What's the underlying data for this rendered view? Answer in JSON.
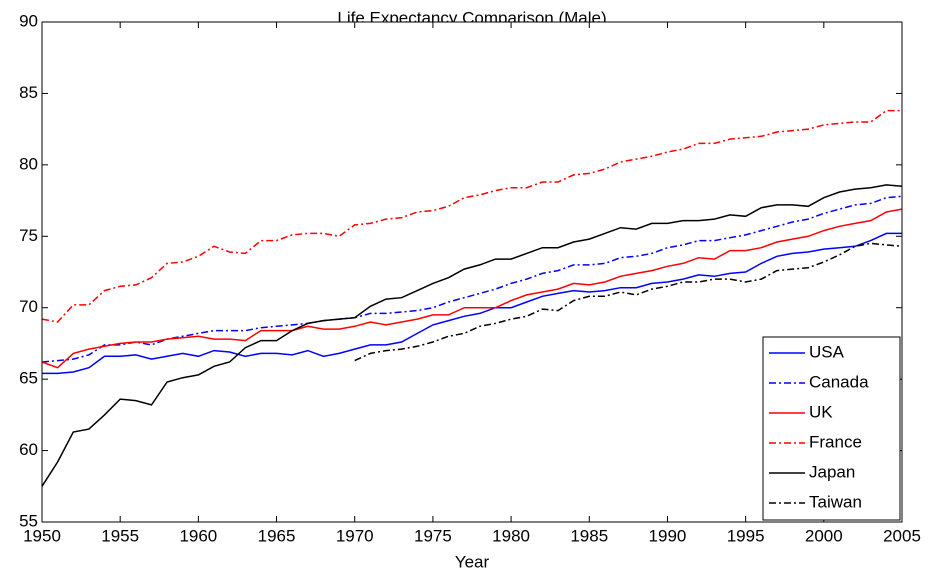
{
  "chart_data": {
    "type": "line",
    "title": "Life Expectancy Comparison (Male)",
    "xlabel": "Year",
    "x": [
      1950,
      1951,
      1952,
      1953,
      1954,
      1955,
      1956,
      1957,
      1958,
      1959,
      1960,
      1961,
      1962,
      1963,
      1964,
      1965,
      1966,
      1967,
      1968,
      1969,
      1970,
      1971,
      1972,
      1973,
      1974,
      1975,
      1976,
      1977,
      1978,
      1979,
      1980,
      1981,
      1982,
      1983,
      1984,
      1985,
      1986,
      1987,
      1988,
      1989,
      1990,
      1991,
      1992,
      1993,
      1994,
      1995,
      1996,
      1997,
      1998,
      1999,
      2000,
      2001,
      2002,
      2003,
      2004,
      2005
    ],
    "xlim": [
      1950,
      2005
    ],
    "xticks": [
      1950,
      1955,
      1960,
      1965,
      1970,
      1975,
      1980,
      1985,
      1990,
      1995,
      2000,
      2005
    ],
    "ylim": [
      55,
      90
    ],
    "yticks": [
      55,
      60,
      65,
      70,
      75,
      80,
      85,
      90
    ],
    "legend": "lower right",
    "series": [
      {
        "name": "USA",
        "color": "#0000ff",
        "style": "solid",
        "values": [
          65.4,
          65.4,
          65.5,
          65.8,
          66.6,
          66.6,
          66.7,
          66.4,
          66.6,
          66.8,
          66.6,
          67.0,
          66.9,
          66.6,
          66.8,
          66.8,
          66.7,
          67.0,
          66.6,
          66.8,
          67.1,
          67.4,
          67.4,
          67.6,
          68.2,
          68.8,
          69.1,
          69.4,
          69.6,
          70.0,
          70.0,
          70.4,
          70.8,
          71.0,
          71.2,
          71.1,
          71.2,
          71.4,
          71.4,
          71.7,
          71.8,
          72.0,
          72.3,
          72.2,
          72.4,
          72.5,
          73.1,
          73.6,
          73.8,
          73.9,
          74.1,
          74.2,
          74.3,
          74.7,
          75.2,
          75.2
        ]
      },
      {
        "name": "Canada",
        "color": "#0000ff",
        "style": "dashdot",
        "values": [
          66.2,
          66.3,
          66.4,
          66.7,
          67.4,
          67.4,
          67.6,
          67.4,
          67.8,
          68.0,
          68.2,
          68.4,
          68.4,
          68.4,
          68.6,
          68.7,
          68.8,
          68.9,
          69.1,
          69.2,
          69.3,
          69.6,
          69.6,
          69.7,
          69.8,
          70.0,
          70.4,
          70.7,
          71.0,
          71.3,
          71.7,
          72.0,
          72.4,
          72.6,
          73.0,
          73.0,
          73.1,
          73.5,
          73.6,
          73.8,
          74.2,
          74.4,
          74.7,
          74.7,
          74.9,
          75.1,
          75.4,
          75.7,
          76.0,
          76.2,
          76.6,
          76.9,
          77.2,
          77.3,
          77.7,
          77.8
        ]
      },
      {
        "name": "UK",
        "color": "#ff0000",
        "style": "solid",
        "values": [
          66.2,
          65.8,
          66.8,
          67.1,
          67.3,
          67.5,
          67.6,
          67.6,
          67.8,
          67.9,
          68.0,
          67.8,
          67.8,
          67.7,
          68.4,
          68.4,
          68.4,
          68.7,
          68.5,
          68.5,
          68.7,
          69.0,
          68.8,
          69.0,
          69.2,
          69.5,
          69.5,
          70.0,
          70.0,
          70.0,
          70.5,
          70.9,
          71.1,
          71.3,
          71.7,
          71.6,
          71.8,
          72.2,
          72.4,
          72.6,
          72.9,
          73.1,
          73.5,
          73.4,
          74.0,
          74.0,
          74.2,
          74.6,
          74.8,
          75.0,
          75.4,
          75.7,
          75.9,
          76.1,
          76.7,
          76.9
        ]
      },
      {
        "name": "France",
        "color": "#ff0000",
        "style": "dashdot",
        "values": [
          69.2,
          69.0,
          70.2,
          70.2,
          71.2,
          71.5,
          71.6,
          72.1,
          73.1,
          73.2,
          73.6,
          74.3,
          73.9,
          73.8,
          74.7,
          74.7,
          75.1,
          75.2,
          75.2,
          75.0,
          75.8,
          75.9,
          76.2,
          76.3,
          76.7,
          76.8,
          77.1,
          77.7,
          77.9,
          78.2,
          78.4,
          78.4,
          78.8,
          78.8,
          79.3,
          79.4,
          79.7,
          80.2,
          80.4,
          80.6,
          80.9,
          81.1,
          81.5,
          81.5,
          81.8,
          81.9,
          82.0,
          82.3,
          82.4,
          82.5,
          82.8,
          82.9,
          83.0,
          83.0,
          83.8,
          83.8
        ]
      },
      {
        "name": "Japan",
        "color": "#000000",
        "style": "solid",
        "values": [
          57.5,
          59.2,
          61.3,
          61.5,
          62.5,
          63.6,
          63.5,
          63.2,
          64.8,
          65.1,
          65.3,
          65.9,
          66.2,
          67.2,
          67.7,
          67.7,
          68.4,
          68.9,
          69.1,
          69.2,
          69.3,
          70.1,
          70.6,
          70.7,
          71.2,
          71.7,
          72.1,
          72.7,
          73.0,
          73.4,
          73.4,
          73.8,
          74.2,
          74.2,
          74.6,
          74.8,
          75.2,
          75.6,
          75.5,
          75.9,
          75.9,
          76.1,
          76.1,
          76.2,
          76.5,
          76.4,
          77.0,
          77.2,
          77.2,
          77.1,
          77.7,
          78.1,
          78.3,
          78.4,
          78.6,
          78.5
        ]
      },
      {
        "name": "Taiwan",
        "color": "#000000",
        "style": "dashdot",
        "values": [
          null,
          null,
          null,
          null,
          null,
          null,
          null,
          null,
          null,
          null,
          null,
          null,
          null,
          null,
          null,
          null,
          null,
          null,
          null,
          null,
          66.3,
          66.8,
          67.0,
          67.1,
          67.3,
          67.6,
          68.0,
          68.2,
          68.7,
          68.9,
          69.2,
          69.4,
          69.9,
          69.8,
          70.5,
          70.8,
          70.8,
          71.1,
          70.9,
          71.3,
          71.5,
          71.8,
          71.8,
          72.0,
          72.0,
          71.8,
          72.0,
          72.6,
          72.7,
          72.8,
          73.2,
          73.7,
          74.3,
          74.5,
          74.4,
          74.3
        ]
      }
    ]
  }
}
